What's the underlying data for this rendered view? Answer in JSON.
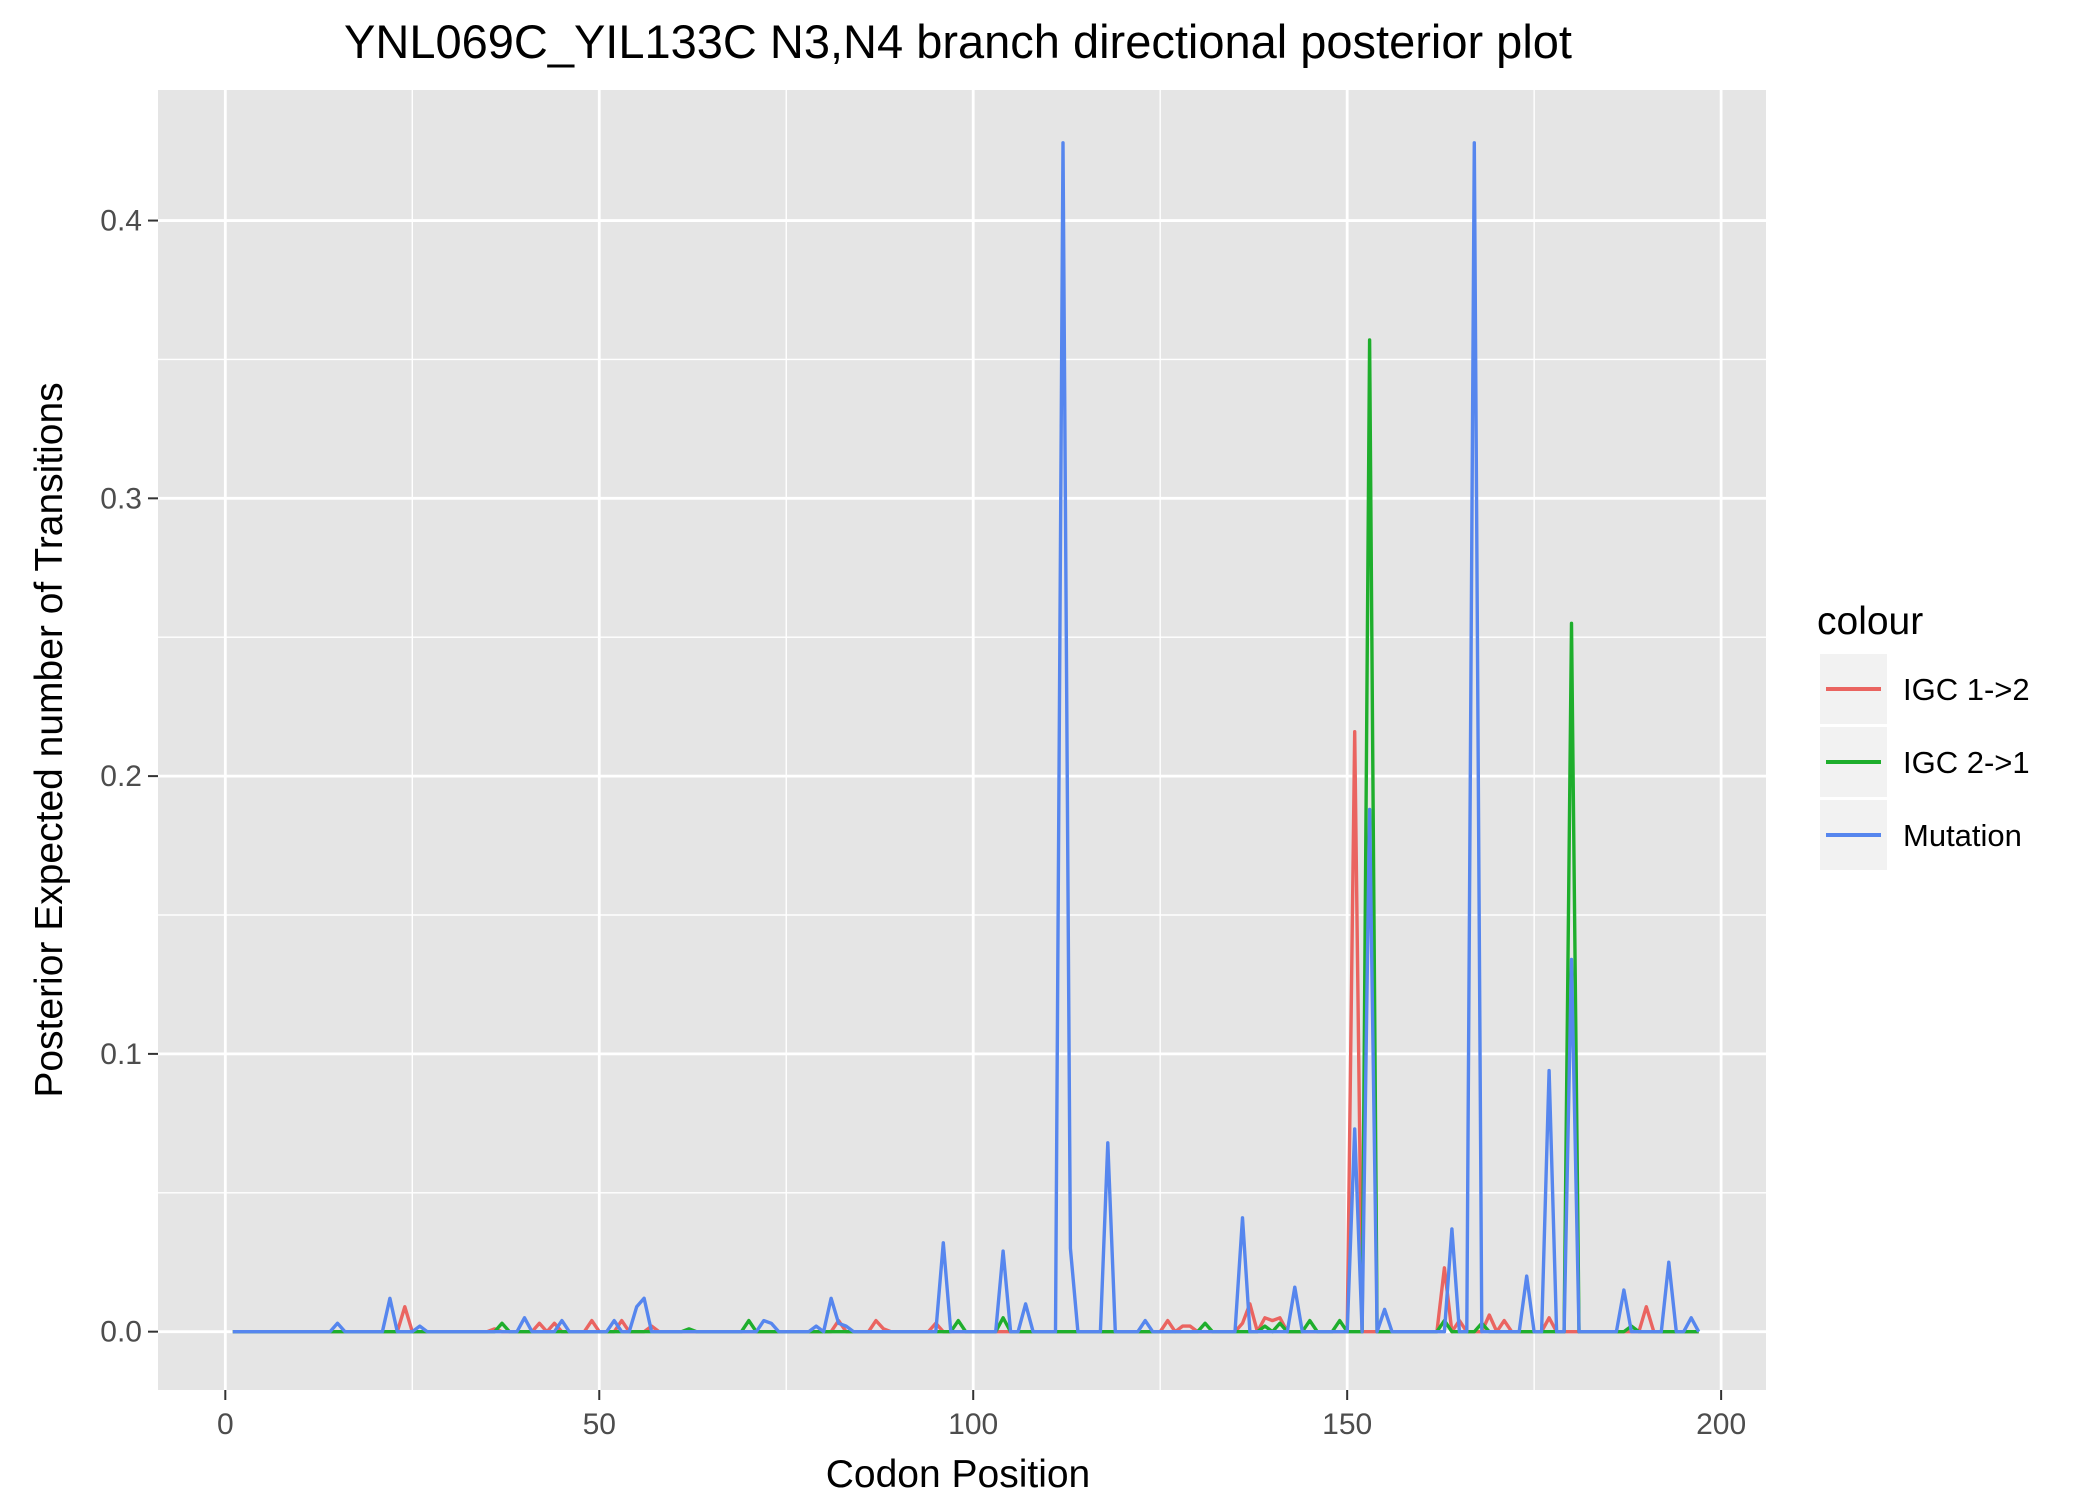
{
  "chart_data": {
    "type": "line",
    "title": "YNL069C_YIL133C N3,N4 branch directional posterior plot",
    "xlabel": "Codon Position",
    "ylabel": "Posterior Expected number of Transitions",
    "xlim": [
      -9,
      206
    ],
    "ylim": [
      -0.021,
      0.447
    ],
    "x_ticks": [
      0,
      50,
      100,
      150,
      200
    ],
    "x_tick_labels": [
      "0",
      "50",
      "100",
      "150",
      "200"
    ],
    "y_ticks": [
      0.0,
      0.1,
      0.2,
      0.3,
      0.4
    ],
    "y_tick_labels": [
      "0.0",
      "0.1",
      "0.2",
      "0.3",
      "0.4"
    ],
    "x_minor_ticks": [
      25,
      75,
      125,
      175
    ],
    "y_minor_ticks": [
      0.05,
      0.15,
      0.25,
      0.35
    ],
    "grid": true,
    "legend": {
      "title": "colour",
      "placement": "right",
      "entries": [
        "IGC 1->2",
        "IGC 2->1",
        "Mutation"
      ]
    },
    "colors": {
      "panel_background": "#e5e5e5",
      "grid": "#ffffff",
      "IGC 1->2": "#ea6460",
      "IGC 2->1": "#1eae2c",
      "Mutation": "#5686ee"
    },
    "series": [
      {
        "name": "IGC 1->2",
        "points": [
          [
            1,
            0
          ],
          [
            23,
            0
          ],
          [
            24,
            0.009
          ],
          [
            25,
            0
          ],
          [
            35,
            0
          ],
          [
            36,
            0.001
          ],
          [
            37,
            0
          ],
          [
            41,
            0
          ],
          [
            42,
            0.003
          ],
          [
            43,
            0
          ],
          [
            44,
            0.003
          ],
          [
            45,
            0
          ],
          [
            48,
            0
          ],
          [
            49,
            0.004
          ],
          [
            50,
            0
          ],
          [
            52,
            0
          ],
          [
            53,
            0.004
          ],
          [
            54,
            0
          ],
          [
            56,
            0
          ],
          [
            57,
            0.002
          ],
          [
            58,
            0
          ],
          [
            81,
            0
          ],
          [
            82,
            0.004
          ],
          [
            83,
            0
          ],
          [
            86,
            0
          ],
          [
            87,
            0.004
          ],
          [
            88,
            0.001
          ],
          [
            89,
            0
          ],
          [
            94,
            0
          ],
          [
            95,
            0.003
          ],
          [
            96,
            0
          ],
          [
            125,
            0
          ],
          [
            126,
            0.004
          ],
          [
            127,
            0
          ],
          [
            128,
            0.002
          ],
          [
            129,
            0.002
          ],
          [
            130,
            0
          ],
          [
            135,
            0
          ],
          [
            136,
            0.003
          ],
          [
            137,
            0.01
          ],
          [
            138,
            0
          ],
          [
            139,
            0.005
          ],
          [
            140,
            0.004
          ],
          [
            141,
            0.005
          ],
          [
            142,
            0
          ],
          [
            150,
            0
          ],
          [
            151,
            0.216
          ],
          [
            152,
            0
          ],
          [
            162,
            0
          ],
          [
            163,
            0.023
          ],
          [
            164,
            0
          ],
          [
            165,
            0.004
          ],
          [
            166,
            0
          ],
          [
            168,
            0
          ],
          [
            169,
            0.006
          ],
          [
            170,
            0
          ],
          [
            171,
            0.004
          ],
          [
            172,
            0
          ],
          [
            176,
            0
          ],
          [
            177,
            0.005
          ],
          [
            178,
            0
          ],
          [
            189,
            0
          ],
          [
            190,
            0.009
          ],
          [
            191,
            0
          ],
          [
            197,
            0
          ]
        ]
      },
      {
        "name": "IGC 2->1",
        "points": [
          [
            1,
            0
          ],
          [
            36,
            0
          ],
          [
            37,
            0.003
          ],
          [
            38,
            0
          ],
          [
            61,
            0
          ],
          [
            62,
            0.001
          ],
          [
            63,
            0
          ],
          [
            69,
            0
          ],
          [
            70,
            0.004
          ],
          [
            71,
            0
          ],
          [
            97,
            0
          ],
          [
            98,
            0.004
          ],
          [
            99,
            0
          ],
          [
            103,
            0
          ],
          [
            104,
            0.005
          ],
          [
            105,
            0
          ],
          [
            130,
            0
          ],
          [
            131,
            0.003
          ],
          [
            132,
            0
          ],
          [
            138,
            0
          ],
          [
            139,
            0.002
          ],
          [
            140,
            0
          ],
          [
            141,
            0.003
          ],
          [
            142,
            0
          ],
          [
            144,
            0
          ],
          [
            145,
            0.004
          ],
          [
            146,
            0
          ],
          [
            148,
            0
          ],
          [
            149,
            0.004
          ],
          [
            150,
            0
          ],
          [
            152,
            0
          ],
          [
            153,
            0.357
          ],
          [
            154,
            0
          ],
          [
            162,
            0
          ],
          [
            163,
            0.004
          ],
          [
            164,
            0
          ],
          [
            167,
            0
          ],
          [
            168,
            0.003
          ],
          [
            169,
            0
          ],
          [
            179,
            0
          ],
          [
            180,
            0.255
          ],
          [
            181,
            0
          ],
          [
            187,
            0
          ],
          [
            188,
            0.002
          ],
          [
            189,
            0
          ],
          [
            197,
            0
          ]
        ]
      },
      {
        "name": "Mutation",
        "points": [
          [
            1,
            0
          ],
          [
            14,
            0
          ],
          [
            15,
            0.003
          ],
          [
            16,
            0
          ],
          [
            21,
            0
          ],
          [
            22,
            0.012
          ],
          [
            23,
            0
          ],
          [
            25,
            0
          ],
          [
            26,
            0.002
          ],
          [
            27,
            0
          ],
          [
            39,
            0
          ],
          [
            40,
            0.005
          ],
          [
            41,
            0
          ],
          [
            44,
            0
          ],
          [
            45,
            0.004
          ],
          [
            46,
            0
          ],
          [
            51,
            0
          ],
          [
            52,
            0.004
          ],
          [
            53,
            0
          ],
          [
            54,
            0
          ],
          [
            55,
            0.009
          ],
          [
            56,
            0.012
          ],
          [
            57,
            0
          ],
          [
            71,
            0
          ],
          [
            72,
            0.004
          ],
          [
            73,
            0.003
          ],
          [
            74,
            0
          ],
          [
            78,
            0
          ],
          [
            79,
            0.002
          ],
          [
            80,
            0
          ],
          [
            81,
            0.012
          ],
          [
            82,
            0.003
          ],
          [
            83,
            0.002
          ],
          [
            84,
            0
          ],
          [
            95,
            0
          ],
          [
            96,
            0.032
          ],
          [
            97,
            0
          ],
          [
            103,
            0
          ],
          [
            104,
            0.029
          ],
          [
            105,
            0
          ],
          [
            106,
            0
          ],
          [
            107,
            0.01
          ],
          [
            108,
            0
          ],
          [
            111,
            0
          ],
          [
            112,
            0.428
          ],
          [
            113,
            0.03
          ],
          [
            114,
            0
          ],
          [
            117,
            0
          ],
          [
            118,
            0.068
          ],
          [
            119,
            0
          ],
          [
            122,
            0
          ],
          [
            123,
            0.004
          ],
          [
            124,
            0
          ],
          [
            135,
            0
          ],
          [
            136,
            0.041
          ],
          [
            137,
            0
          ],
          [
            142,
            0
          ],
          [
            143,
            0.016
          ],
          [
            144,
            0
          ],
          [
            150,
            0
          ],
          [
            151,
            0.073
          ],
          [
            152,
            0
          ],
          [
            153,
            0.188
          ],
          [
            154,
            0
          ],
          [
            155,
            0.008
          ],
          [
            156,
            0
          ],
          [
            163,
            0
          ],
          [
            164,
            0.037
          ],
          [
            165,
            0
          ],
          [
            166,
            0
          ],
          [
            167,
            0.428
          ],
          [
            168,
            0
          ],
          [
            173,
            0
          ],
          [
            174,
            0.02
          ],
          [
            175,
            0
          ],
          [
            176,
            0
          ],
          [
            177,
            0.094
          ],
          [
            178,
            0
          ],
          [
            179,
            0
          ],
          [
            180,
            0.134
          ],
          [
            181,
            0
          ],
          [
            186,
            0
          ],
          [
            187,
            0.015
          ],
          [
            188,
            0
          ],
          [
            192,
            0
          ],
          [
            193,
            0.025
          ],
          [
            194,
            0
          ],
          [
            195,
            0
          ],
          [
            196,
            0.005
          ],
          [
            197,
            0
          ]
        ]
      }
    ]
  }
}
